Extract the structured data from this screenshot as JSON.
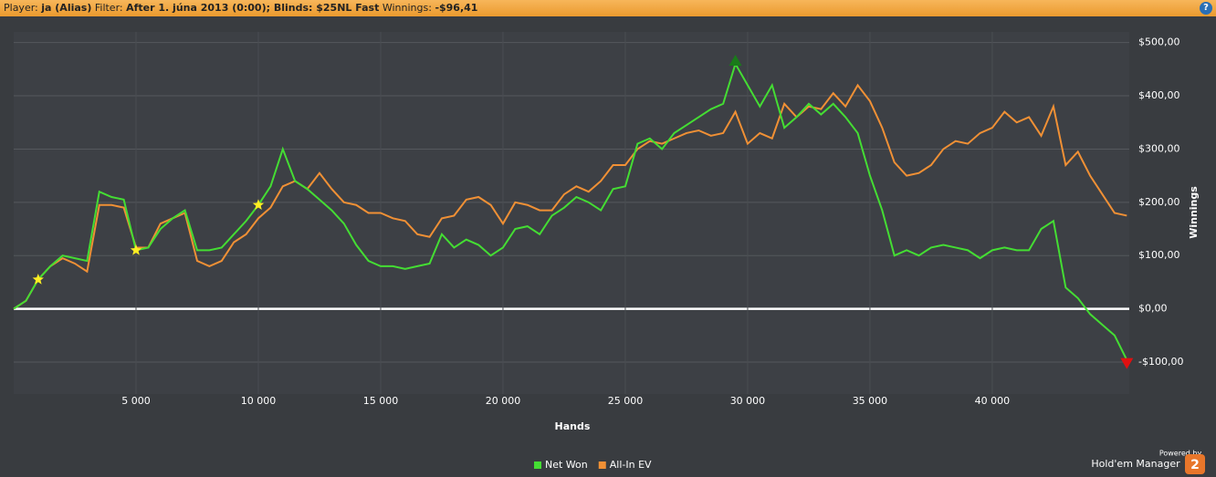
{
  "header": {
    "player_label": "Player:",
    "player": "ja (Alias)",
    "filter_label": "Filter:",
    "filter": "After 1. júna 2013 (0:00); Blinds: $25NL Fast",
    "winnings_label": "Winnings:",
    "winnings": "-$96,41",
    "help": "?"
  },
  "branding": {
    "powered_by": "Powered by",
    "product": "Hold'em Manager",
    "version": "2"
  },
  "chart_data": {
    "type": "line",
    "x_label": "Hands",
    "y_label": "Winnings",
    "x": [
      0,
      500,
      1000,
      1500,
      2000,
      2500,
      3000,
      3500,
      4000,
      4500,
      5000,
      5500,
      6000,
      6500,
      7000,
      7500,
      8000,
      8500,
      9000,
      9500,
      10000,
      10500,
      11000,
      11500,
      12000,
      12500,
      13000,
      13500,
      14000,
      14500,
      15000,
      15500,
      16000,
      16500,
      17000,
      17500,
      18000,
      18500,
      19000,
      19500,
      20000,
      20500,
      21000,
      21500,
      22000,
      22500,
      23000,
      23500,
      24000,
      24500,
      25000,
      25500,
      26000,
      26500,
      27000,
      27500,
      28000,
      28500,
      29000,
      29500,
      30000,
      30500,
      31000,
      31500,
      32000,
      32500,
      33000,
      33500,
      34000,
      34500,
      35000,
      35500,
      36000,
      36500,
      37000,
      37500,
      38000,
      38500,
      39000,
      39500,
      40000,
      40500,
      41000,
      41500,
      42000,
      42500,
      43000,
      43500,
      44000,
      44500,
      45000,
      45500
    ],
    "series": [
      {
        "name": "Net Won",
        "color": "#44dd33",
        "values": [
          0,
          15,
          55,
          80,
          100,
          95,
          90,
          220,
          210,
          205,
          110,
          115,
          150,
          170,
          185,
          110,
          110,
          115,
          140,
          165,
          195,
          230,
          300,
          240,
          225,
          205,
          185,
          160,
          120,
          90,
          80,
          80,
          75,
          80,
          85,
          140,
          115,
          130,
          120,
          100,
          115,
          150,
          155,
          140,
          175,
          190,
          210,
          200,
          185,
          225,
          230,
          310,
          320,
          300,
          330,
          345,
          360,
          375,
          385,
          460,
          420,
          380,
          420,
          340,
          360,
          385,
          365,
          385,
          360,
          330,
          250,
          185,
          100,
          110,
          100,
          115,
          120,
          115,
          110,
          95,
          110,
          115,
          110,
          110,
          150,
          165,
          40,
          20,
          -10,
          -30,
          -50,
          -96
        ]
      },
      {
        "name": "All-In EV",
        "color": "#f09035",
        "values": [
          0,
          15,
          55,
          80,
          95,
          85,
          70,
          195,
          195,
          190,
          115,
          115,
          160,
          170,
          180,
          90,
          80,
          90,
          125,
          140,
          170,
          190,
          230,
          240,
          225,
          255,
          225,
          200,
          195,
          180,
          180,
          170,
          165,
          140,
          135,
          170,
          175,
          205,
          210,
          195,
          160,
          200,
          195,
          185,
          185,
          215,
          230,
          220,
          240,
          270,
          270,
          300,
          315,
          310,
          320,
          330,
          335,
          325,
          330,
          370,
          310,
          330,
          320,
          385,
          360,
          380,
          375,
          405,
          380,
          420,
          390,
          340,
          275,
          250,
          255,
          270,
          300,
          315,
          310,
          330,
          340,
          370,
          350,
          360,
          325,
          380,
          270,
          295,
          250,
          215,
          180,
          175
        ]
      }
    ],
    "xlim": [
      0,
      45600
    ],
    "ylim": [
      -160,
      520
    ],
    "xticks": [
      {
        "value": 5000,
        "label": "5 000"
      },
      {
        "value": 10000,
        "label": "10 000"
      },
      {
        "value": 15000,
        "label": "15 000"
      },
      {
        "value": 20000,
        "label": "20 000"
      },
      {
        "value": 25000,
        "label": "25 000"
      },
      {
        "value": 30000,
        "label": "30 000"
      },
      {
        "value": 35000,
        "label": "35 000"
      },
      {
        "value": 40000,
        "label": "40 000"
      }
    ],
    "yticks": [
      {
        "value": -100,
        "label": "-$100,00"
      },
      {
        "value": 0,
        "label": "$0,00"
      },
      {
        "value": 100,
        "label": "$100,00"
      },
      {
        "value": 200,
        "label": "$200,00"
      },
      {
        "value": 300,
        "label": "$300,00"
      },
      {
        "value": 400,
        "label": "$400,00"
      },
      {
        "value": 500,
        "label": "$500,00"
      }
    ],
    "grid": true
  }
}
